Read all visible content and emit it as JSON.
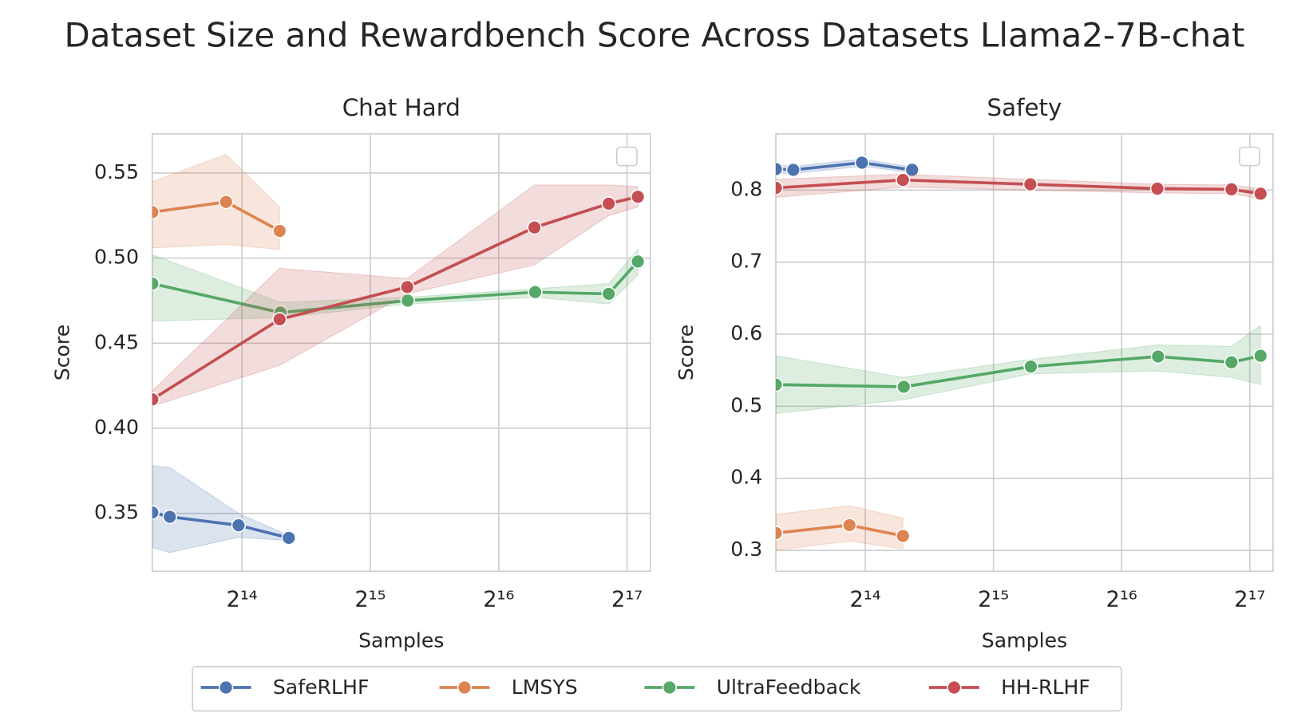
{
  "title": "Dataset Size and Rewardbench Score Across Datasets Llama2-7B-chat",
  "legend": "bottom",
  "chart_data": [
    {
      "type": "line",
      "title": "Chat Hard",
      "x_label": "Samples",
      "y_label": "Score",
      "xscale": "log2",
      "grid": true,
      "legend_box": "upper right",
      "xlim": [
        10100,
        148600
      ],
      "ylim": [
        0.316,
        0.573
      ],
      "xticks": [
        {
          "value": 16384,
          "label": "2¹⁴"
        },
        {
          "value": 32768,
          "label": "2¹⁵"
        },
        {
          "value": 65536,
          "label": "2¹⁶"
        },
        {
          "value": 131072,
          "label": "2¹⁷"
        }
      ],
      "yticks": [
        0.35,
        {
          "value": 0.4,
          "label": "0.40"
        },
        0.45,
        {
          "value": 0.5,
          "label": "0.50"
        },
        0.55
      ],
      "series": [
        {
          "name": "SafeRLHF",
          "color": "#4c72b0",
          "x": [
            10100,
            11100,
            16090,
            21100
          ],
          "values": [
            0.3505,
            0.348,
            0.343,
            0.3356
          ],
          "lower": [
            0.33,
            0.327,
            0.336,
            0.334
          ],
          "upper": [
            0.378,
            0.377,
            0.35,
            0.337
          ]
        },
        {
          "name": "LMSYS",
          "color": "#dd8452",
          "x": [
            10100,
            15040,
            20080
          ],
          "values": [
            0.527,
            0.533,
            0.516
          ],
          "lower": [
            0.506,
            0.508,
            0.505
          ],
          "upper": [
            0.545,
            0.561,
            0.53
          ]
        },
        {
          "name": "UltraFeedback",
          "color": "#55a868",
          "x": [
            10100,
            20170,
            40100,
            79800,
            118700,
            138900
          ],
          "values": [
            0.485,
            0.468,
            0.475,
            0.48,
            0.479,
            0.498
          ],
          "lower": [
            0.463,
            0.465,
            0.473,
            0.477,
            0.473,
            0.49
          ],
          "upper": [
            0.502,
            0.474,
            0.477,
            0.482,
            0.485,
            0.505
          ]
        },
        {
          "name": "HH-RLHF",
          "color": "#c44e52",
          "x": [
            10100,
            20080,
            40000,
            79500,
            118700,
            138900
          ],
          "values": [
            0.417,
            0.464,
            0.483,
            0.518,
            0.532,
            0.536
          ],
          "lower": [
            0.413,
            0.437,
            0.479,
            0.496,
            0.525,
            0.53
          ],
          "upper": [
            0.422,
            0.494,
            0.488,
            0.543,
            0.543,
            0.542
          ]
        }
      ]
    },
    {
      "type": "line",
      "title": "Safety",
      "x_label": "Samples",
      "y_label": "Score",
      "xscale": "log2",
      "grid": true,
      "legend_box": "upper right",
      "xlim": [
        10100,
        148600
      ],
      "ylim": [
        0.271,
        0.878
      ],
      "xticks": [
        {
          "value": 16384,
          "label": "2¹⁴"
        },
        {
          "value": 32768,
          "label": "2¹⁵"
        },
        {
          "value": 65536,
          "label": "2¹⁶"
        },
        {
          "value": 131072,
          "label": "2¹⁷"
        }
      ],
      "yticks": [
        0.3,
        0.4,
        0.5,
        0.6,
        0.7,
        0.8
      ],
      "series": [
        {
          "name": "SafeRLHF",
          "color": "#4c72b0",
          "x": [
            10100,
            11100,
            16090,
            21100
          ],
          "values": [
            0.829,
            0.828,
            0.838,
            0.828
          ],
          "lower": [
            0.823,
            0.823,
            0.833,
            0.824
          ],
          "upper": [
            0.835,
            0.833,
            0.843,
            0.832
          ]
        },
        {
          "name": "LMSYS",
          "color": "#dd8452",
          "x": [
            10100,
            15040,
            20080
          ],
          "values": [
            0.324,
            0.335,
            0.32
          ],
          "lower": [
            0.3,
            0.313,
            0.302
          ],
          "upper": [
            0.35,
            0.362,
            0.345
          ]
        },
        {
          "name": "UltraFeedback",
          "color": "#55a868",
          "x": [
            10100,
            20170,
            40100,
            79800,
            118700,
            138900
          ],
          "values": [
            0.53,
            0.527,
            0.555,
            0.569,
            0.561,
            0.57
          ],
          "lower": [
            0.49,
            0.509,
            0.545,
            0.549,
            0.54,
            0.53
          ],
          "upper": [
            0.57,
            0.54,
            0.565,
            0.585,
            0.583,
            0.612
          ]
        },
        {
          "name": "HH-RLHF",
          "color": "#c44e52",
          "x": [
            10100,
            20080,
            40000,
            79500,
            118700,
            138900
          ],
          "values": [
            0.803,
            0.814,
            0.808,
            0.802,
            0.801,
            0.795
          ],
          "lower": [
            0.79,
            0.804,
            0.8,
            0.796,
            0.795,
            0.788
          ],
          "upper": [
            0.815,
            0.822,
            0.815,
            0.808,
            0.807,
            0.802
          ]
        }
      ]
    }
  ]
}
